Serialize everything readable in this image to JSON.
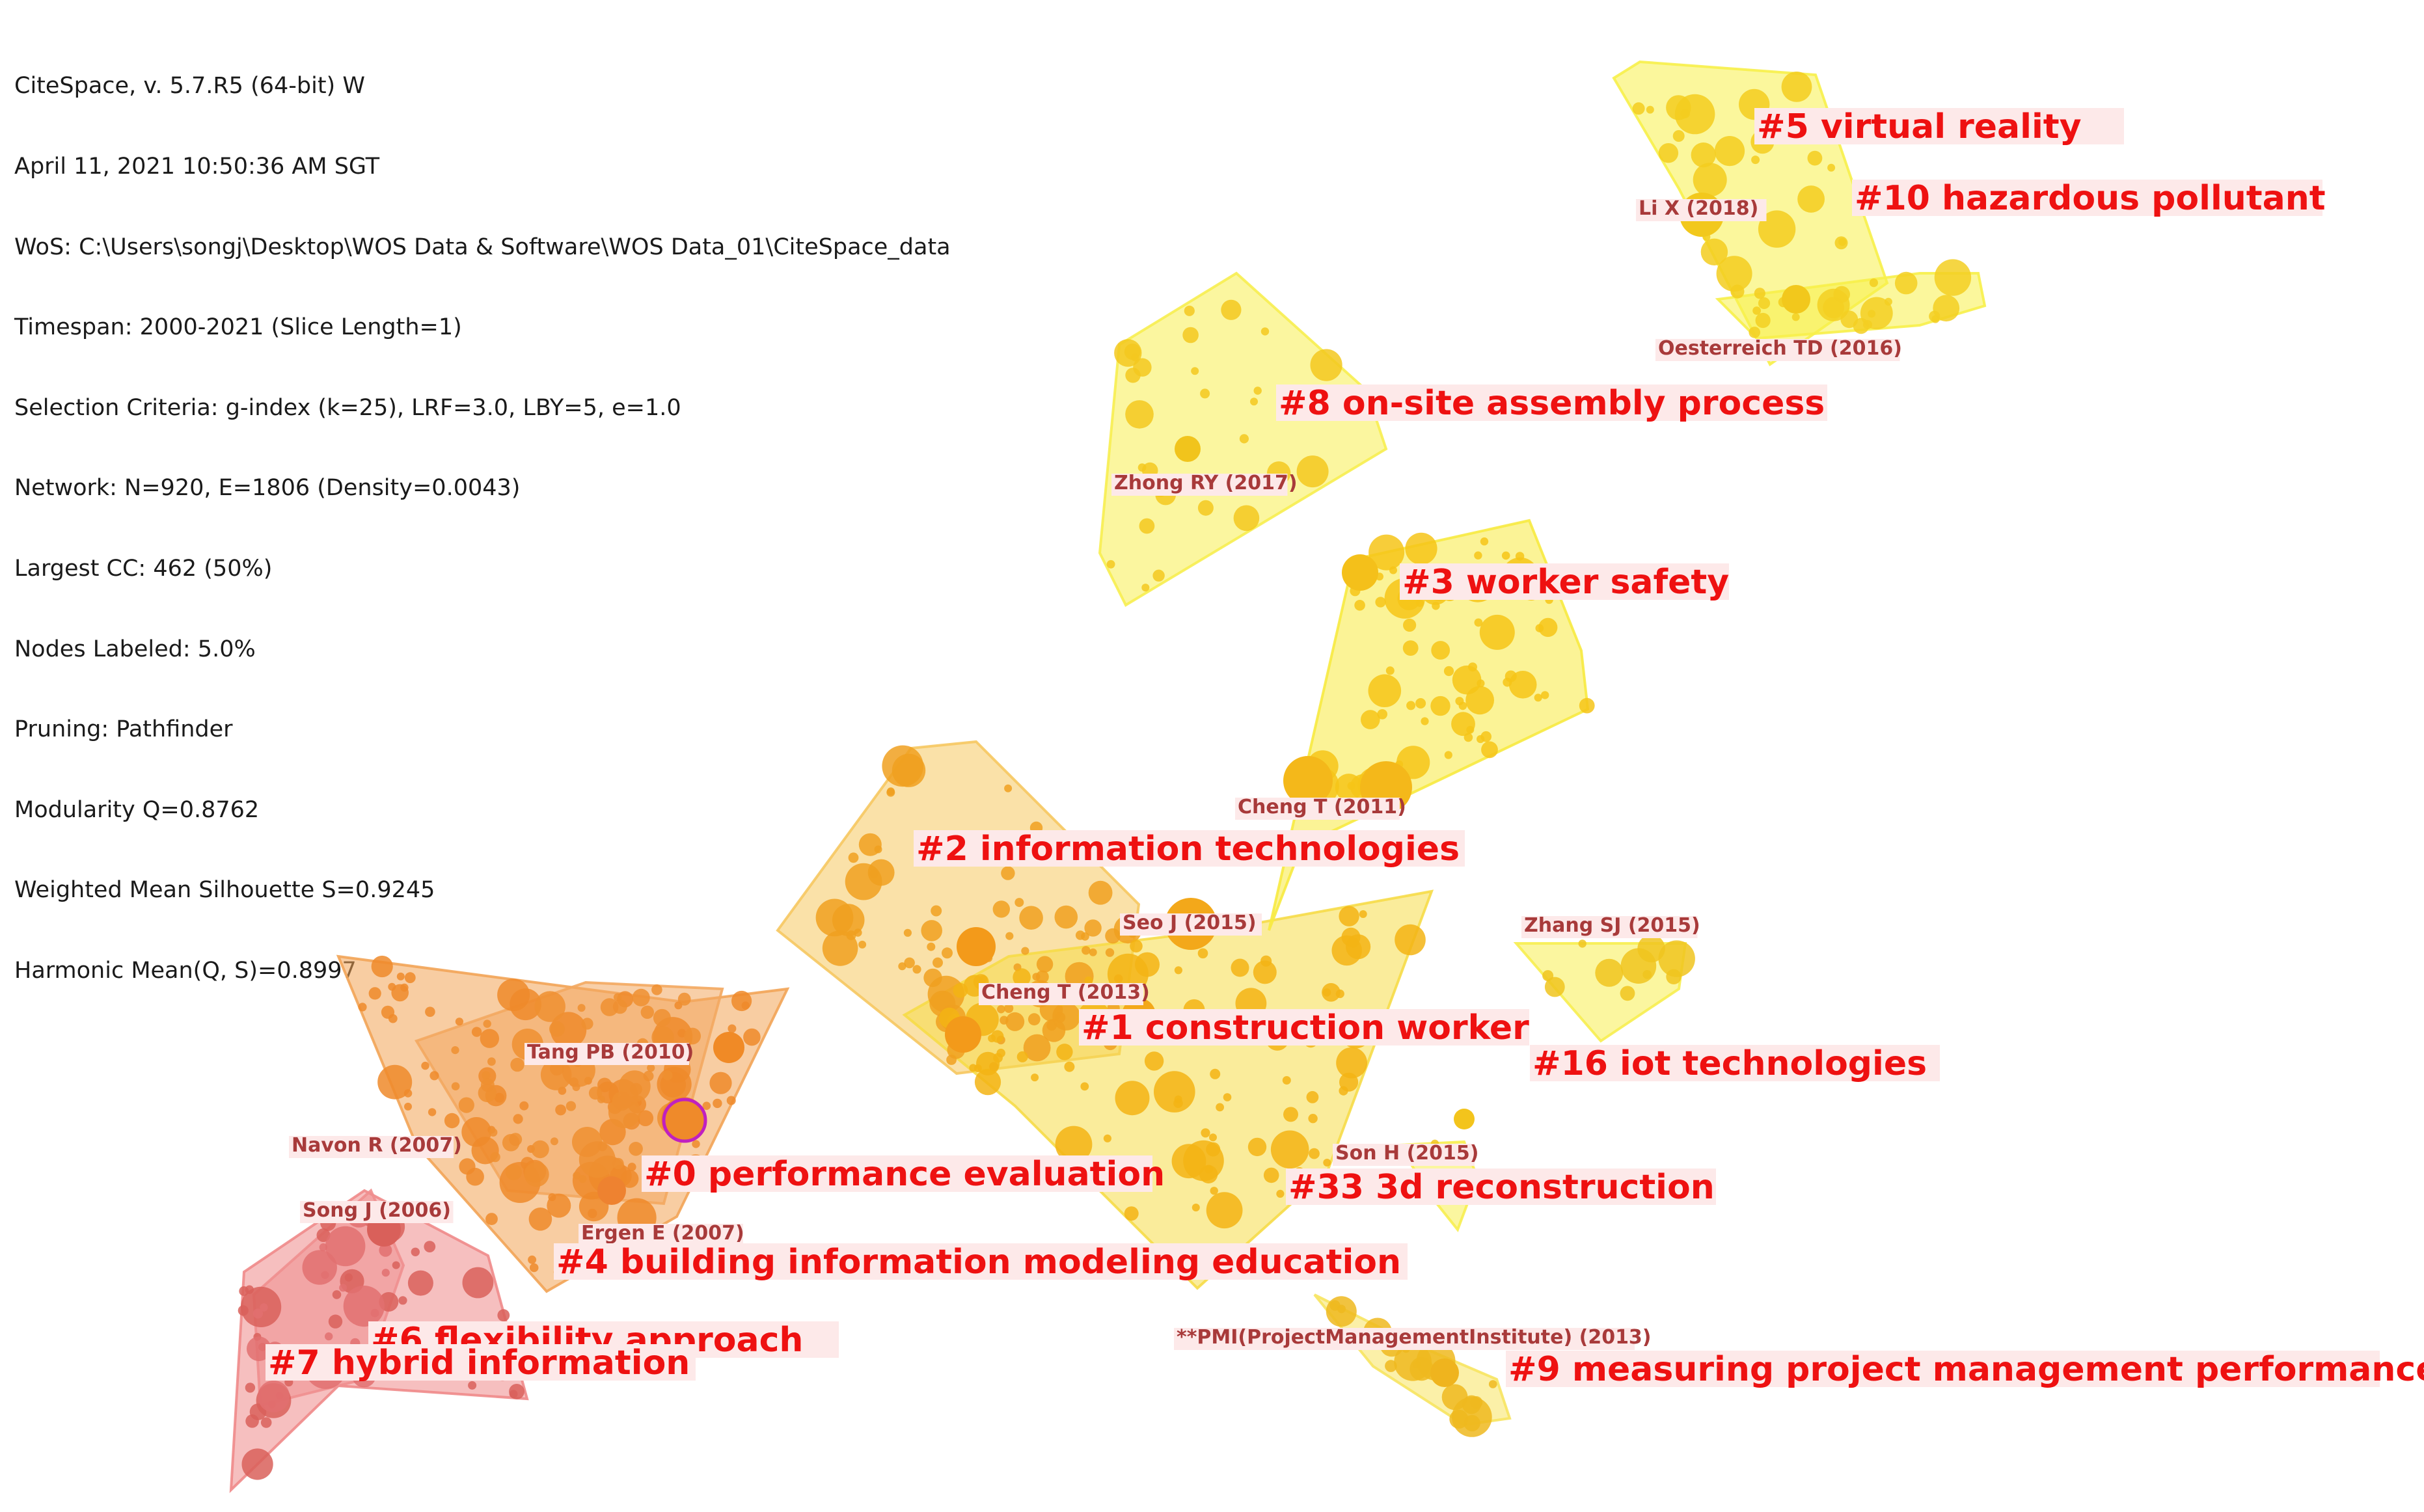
{
  "info_lines": [
    "CiteSpace, v. 5.7.R5 (64-bit) W",
    "April 11, 2021 10:50:36 AM SGT",
    "WoS: C:\\Users\\songj\\Desktop\\WOS Data & Software\\WOS Data_01\\CiteSpace_data",
    "Timespan: 2000-2021 (Slice Length=1)",
    "Selection Criteria: g-index (k=25), LRF=3.0, LBY=5, e=1.0",
    "Network: N=920, E=1806 (Density=0.0043)",
    "Largest CC: 462 (50%)",
    "Nodes Labeled: 5.0%",
    "Pruning: Pathfinder",
    "Modularity Q=0.8762",
    "Weighted Mean Silhouette S=0.9245",
    "Harmonic Mean(Q, S)=0.8997"
  ],
  "clusters": [
    {
      "id": "5",
      "label": "#5 virtual reality",
      "color": "#f7f04a"
    },
    {
      "id": "10",
      "label": "#10 hazardous pollutant",
      "color": "#f7f04a"
    },
    {
      "id": "8",
      "label": "#8 on-site assembly process",
      "color": "#f7ee50"
    },
    {
      "id": "3",
      "label": "#3 worker safety",
      "color": "#f7ea40"
    },
    {
      "id": "2",
      "label": "#2 information technologies",
      "color": "#f6c860"
    },
    {
      "id": "1",
      "label": "#1 construction worker",
      "color": "#f6dc48"
    },
    {
      "id": "16",
      "label": "#16 iot technologies",
      "color": "#f7ee50"
    },
    {
      "id": "0",
      "label": "#0 performance evaluation",
      "color": "#f3a860"
    },
    {
      "id": "33",
      "label": "#33 3d reconstruction",
      "color": "#f7ee50"
    },
    {
      "id": "4",
      "label": "#4 building information modeling education",
      "color": "#f2a456"
    },
    {
      "id": "6",
      "label": "#6 flexibility approach",
      "color": "#ef8a8a"
    },
    {
      "id": "7",
      "label": "#7 hybrid information",
      "color": "#ef8f8f"
    },
    {
      "id": "9",
      "label": "#9 measuring project management performance",
      "color": "#f7e460"
    }
  ],
  "node_labels": [
    "Li X (2018)",
    "Oesterreich TD (2016)",
    "Zhong RY (2017)",
    "Cheng T (2011)",
    "Seo J (2015)",
    "Cheng T (2013)",
    "Zhang SJ (2015)",
    "Tang PB (2010)",
    "Navon R (2007)",
    "Son H (2015)",
    "Song J (2006)",
    "Ergen E (2007)",
    "**PMI(ProjectManagementInstitute) (2013)"
  ]
}
